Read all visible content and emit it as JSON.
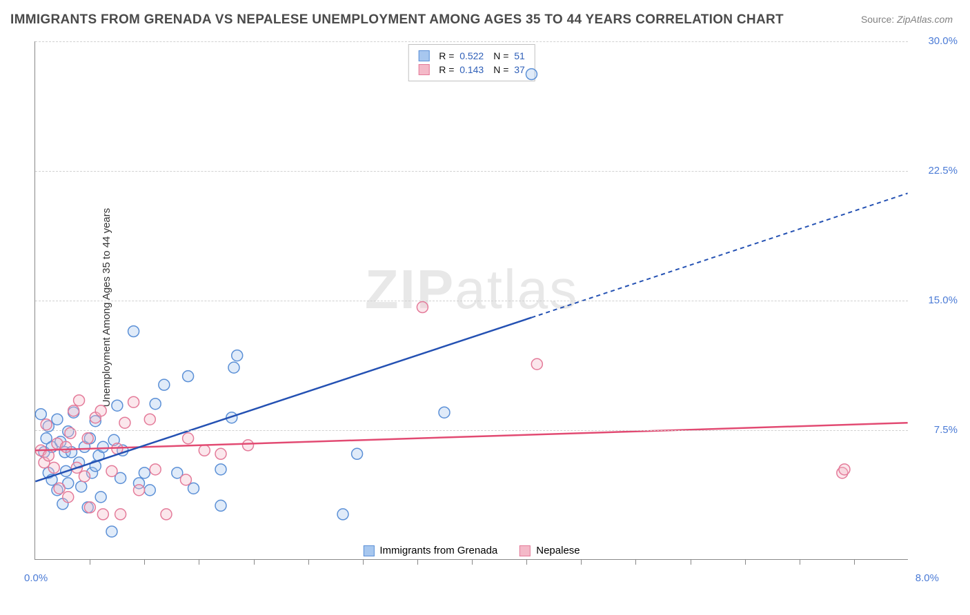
{
  "title": "IMMIGRANTS FROM GRENADA VS NEPALESE UNEMPLOYMENT AMONG AGES 35 TO 44 YEARS CORRELATION CHART",
  "source_label": "Source:",
  "source_value": "ZipAtlas.com",
  "ylabel": "Unemployment Among Ages 35 to 44 years",
  "watermark_bold": "ZIP",
  "watermark_rest": "atlas",
  "chart": {
    "type": "scatter-with-regression",
    "xlim": [
      0.0,
      8.0
    ],
    "ylim": [
      0.0,
      30.0
    ],
    "x_origin_label": "0.0%",
    "x_max_label": "8.0%",
    "y_right_ticks": [
      7.5,
      15.0,
      22.5,
      30.0
    ],
    "y_right_tick_labels": [
      "7.5%",
      "15.0%",
      "22.5%",
      "30.0%"
    ],
    "x_minor_ticks": [
      0.5,
      1.0,
      1.5,
      2.0,
      2.5,
      3.0,
      3.5,
      4.0,
      4.5,
      5.0,
      5.5,
      6.0,
      6.5,
      7.0,
      7.5
    ],
    "background_color": "#ffffff",
    "grid_color": "#d0d0d0",
    "axis_color": "#888888",
    "marker_radius": 8,
    "marker_stroke_width": 1.5,
    "marker_fill_opacity": 0.35,
    "trend_line_width": 2.5,
    "trend_dash_pattern": "6,5"
  },
  "series": {
    "blue": {
      "label": "Immigrants from Grenada",
      "R_label": "R  =",
      "R_value": "0.522",
      "N_label": "N  =",
      "N_value": "51",
      "color_fill": "#a7c7ef",
      "color_stroke": "#5a8fd6",
      "trend_color": "#2451b3",
      "trend_solid_end_x": 4.55,
      "trend": {
        "x1": 0.0,
        "y1": 4.5,
        "x2": 8.0,
        "y2": 21.2
      },
      "points": [
        [
          0.05,
          8.4
        ],
        [
          0.08,
          6.2
        ],
        [
          0.1,
          7.0
        ],
        [
          0.12,
          5.0
        ],
        [
          0.12,
          7.7
        ],
        [
          0.15,
          4.6
        ],
        [
          0.15,
          6.5
        ],
        [
          0.2,
          4.0
        ],
        [
          0.2,
          8.1
        ],
        [
          0.23,
          6.8
        ],
        [
          0.25,
          3.2
        ],
        [
          0.27,
          6.2
        ],
        [
          0.28,
          5.1
        ],
        [
          0.3,
          7.4
        ],
        [
          0.3,
          4.4
        ],
        [
          0.33,
          6.2
        ],
        [
          0.35,
          8.5
        ],
        [
          0.4,
          5.6
        ],
        [
          0.42,
          4.2
        ],
        [
          0.45,
          6.5
        ],
        [
          0.48,
          3.0
        ],
        [
          0.5,
          7.0
        ],
        [
          0.52,
          5.0
        ],
        [
          0.55,
          5.4
        ],
        [
          0.55,
          8.0
        ],
        [
          0.58,
          6.0
        ],
        [
          0.6,
          3.6
        ],
        [
          0.62,
          6.5
        ],
        [
          0.7,
          1.6
        ],
        [
          0.72,
          6.9
        ],
        [
          0.75,
          8.9
        ],
        [
          0.78,
          4.7
        ],
        [
          0.8,
          6.3
        ],
        [
          0.9,
          13.2
        ],
        [
          0.95,
          4.4
        ],
        [
          1.0,
          5.0
        ],
        [
          1.05,
          4.0
        ],
        [
          1.1,
          9.0
        ],
        [
          1.18,
          10.1
        ],
        [
          1.3,
          5.0
        ],
        [
          1.4,
          10.6
        ],
        [
          1.45,
          4.1
        ],
        [
          1.7,
          3.1
        ],
        [
          1.7,
          5.2
        ],
        [
          1.8,
          8.2
        ],
        [
          1.82,
          11.1
        ],
        [
          1.85,
          11.8
        ],
        [
          2.82,
          2.6
        ],
        [
          2.95,
          6.1
        ],
        [
          3.75,
          8.5
        ],
        [
          4.55,
          28.1
        ]
      ]
    },
    "pink": {
      "label": "Nepalese",
      "R_label": "R  =",
      "R_value": "0.143",
      "N_label": "N  =",
      "N_value": "37",
      "color_fill": "#f4b9c8",
      "color_stroke": "#e47a99",
      "trend_color": "#e24a72",
      "trend_solid_end_x": 8.0,
      "trend": {
        "x1": 0.0,
        "y1": 6.3,
        "x2": 8.0,
        "y2": 7.9
      },
      "points": [
        [
          0.05,
          6.3
        ],
        [
          0.08,
          5.6
        ],
        [
          0.1,
          7.8
        ],
        [
          0.12,
          6.0
        ],
        [
          0.17,
          5.3
        ],
        [
          0.2,
          6.7
        ],
        [
          0.22,
          4.1
        ],
        [
          0.28,
          6.5
        ],
        [
          0.3,
          3.6
        ],
        [
          0.32,
          7.3
        ],
        [
          0.35,
          8.6
        ],
        [
          0.38,
          5.3
        ],
        [
          0.4,
          9.2
        ],
        [
          0.45,
          4.8
        ],
        [
          0.48,
          7.0
        ],
        [
          0.5,
          3.0
        ],
        [
          0.55,
          8.2
        ],
        [
          0.6,
          8.6
        ],
        [
          0.62,
          2.6
        ],
        [
          0.7,
          5.1
        ],
        [
          0.75,
          6.4
        ],
        [
          0.78,
          2.6
        ],
        [
          0.82,
          7.9
        ],
        [
          0.9,
          9.1
        ],
        [
          0.95,
          4.0
        ],
        [
          1.05,
          8.1
        ],
        [
          1.1,
          5.2
        ],
        [
          1.2,
          2.6
        ],
        [
          1.38,
          4.6
        ],
        [
          1.4,
          7.0
        ],
        [
          1.55,
          6.3
        ],
        [
          1.7,
          6.1
        ],
        [
          1.95,
          6.6
        ],
        [
          3.55,
          14.6
        ],
        [
          4.6,
          11.3
        ],
        [
          7.4,
          5.0
        ],
        [
          7.42,
          5.2
        ]
      ]
    }
  }
}
